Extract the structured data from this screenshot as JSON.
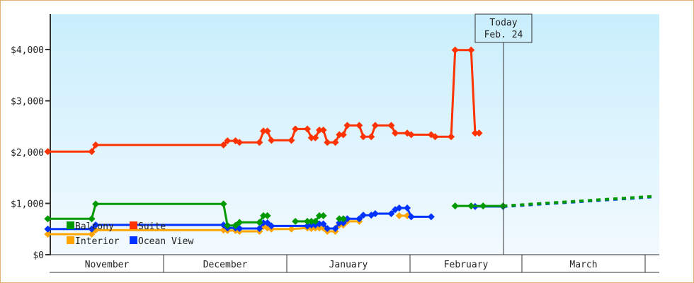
{
  "chart_data": {
    "type": "line",
    "title": "",
    "xlabel": "",
    "ylabel": "",
    "ylim": [
      0,
      4700
    ],
    "y_ticks": [
      "$0",
      "$1,000",
      "$2,000",
      "$3,000",
      "$4,000"
    ],
    "y_tick_values": [
      0,
      1000,
      2000,
      3000,
      4000
    ],
    "x_months": [
      "November",
      "December",
      "January",
      "February",
      "March",
      ""
    ],
    "grid": false,
    "legend_position": "bottom-left",
    "today": {
      "line1": "Today",
      "line2": "Feb. 24",
      "date": "02-24"
    },
    "series": [
      {
        "name": "Balcony",
        "color": "#009900",
        "points": [
          [
            "11-02",
            700
          ],
          [
            "11-13",
            700
          ],
          [
            "11-14",
            990
          ],
          [
            "12-16",
            990
          ],
          [
            "12-17",
            570
          ],
          [
            "12-19",
            570
          ],
          [
            "12-20",
            630
          ],
          [
            "12-25",
            630
          ],
          [
            "12-26",
            760
          ],
          [
            "12-27",
            760
          ],
          null,
          [
            "01-03",
            650
          ],
          [
            "01-06",
            650
          ],
          [
            "01-07",
            650
          ],
          [
            "01-08",
            650
          ],
          [
            "01-09",
            760
          ],
          [
            "01-10",
            760
          ],
          null,
          [
            "01-14",
            700
          ],
          [
            "01-15",
            700
          ],
          null,
          [
            "02-12",
            950
          ],
          [
            "02-16",
            950
          ],
          [
            "02-19",
            950
          ],
          [
            "02-24",
            950
          ]
        ],
        "forecast": [
          [
            "02-24",
            950
          ],
          [
            "04-03",
            1140
          ]
        ]
      },
      {
        "name": "Suite",
        "color": "#ff3300",
        "points": [
          [
            "11-02",
            2010
          ],
          [
            "11-13",
            2010
          ],
          [
            "11-14",
            2140
          ],
          [
            "12-16",
            2140
          ],
          [
            "12-17",
            2220
          ],
          [
            "12-19",
            2220
          ],
          [
            "12-20",
            2190
          ],
          [
            "12-25",
            2190
          ],
          [
            "12-26",
            2410
          ],
          [
            "12-27",
            2410
          ],
          [
            "12-28",
            2230
          ],
          [
            "01-02",
            2230
          ],
          [
            "01-03",
            2450
          ],
          [
            "01-06",
            2450
          ],
          [
            "01-07",
            2280
          ],
          [
            "01-08",
            2280
          ],
          [
            "01-09",
            2430
          ],
          [
            "01-10",
            2430
          ],
          [
            "01-11",
            2190
          ],
          [
            "01-13",
            2190
          ],
          [
            "01-14",
            2340
          ],
          [
            "01-15",
            2340
          ],
          [
            "01-16",
            2520
          ],
          [
            "01-19",
            2520
          ],
          [
            "01-20",
            2300
          ],
          [
            "01-22",
            2300
          ],
          [
            "01-23",
            2520
          ],
          [
            "01-27",
            2520
          ],
          [
            "01-28",
            2370
          ],
          [
            "01-31",
            2370
          ],
          [
            "02-01",
            2340
          ],
          [
            "02-06",
            2340
          ],
          [
            "02-07",
            2300
          ],
          [
            "02-11",
            2300
          ],
          [
            "02-12",
            3990
          ],
          [
            "02-16",
            3990
          ],
          [
            "02-17",
            2370
          ],
          [
            "02-18",
            2370
          ]
        ]
      },
      {
        "name": "Interior",
        "color": "#ffa500",
        "points": [
          [
            "11-02",
            400
          ],
          [
            "11-13",
            400
          ],
          [
            "11-14",
            480
          ],
          [
            "12-16",
            480
          ],
          [
            "12-17",
            470
          ],
          [
            "12-19",
            470
          ],
          [
            "12-20",
            455
          ],
          [
            "12-25",
            455
          ],
          [
            "12-26",
            550
          ],
          [
            "12-27",
            520
          ],
          [
            "12-28",
            500
          ],
          [
            "01-02",
            500
          ],
          [
            "01-06",
            520
          ],
          [
            "01-07",
            510
          ],
          [
            "01-08",
            520
          ],
          [
            "01-09",
            520
          ],
          [
            "01-10",
            520
          ],
          [
            "01-11",
            455
          ],
          [
            "01-13",
            455
          ],
          [
            "01-14",
            580
          ],
          [
            "01-15",
            580
          ],
          [
            "01-16",
            650
          ],
          [
            "01-19",
            650
          ],
          null,
          [
            "01-29",
            760
          ],
          [
            "01-31",
            760
          ]
        ]
      },
      {
        "name": "Ocean View",
        "color": "#0033ff",
        "points": [
          [
            "11-02",
            500
          ],
          [
            "11-13",
            500
          ],
          [
            "11-14",
            580
          ],
          [
            "12-16",
            580
          ],
          [
            "12-17",
            520
          ],
          [
            "12-19",
            520
          ],
          [
            "12-20",
            510
          ],
          [
            "12-25",
            510
          ],
          [
            "12-26",
            620
          ],
          [
            "12-27",
            620
          ],
          [
            "12-28",
            560
          ],
          [
            "01-06",
            560
          ],
          [
            "01-07",
            580
          ],
          [
            "01-08",
            580
          ],
          [
            "01-09",
            600
          ],
          [
            "01-10",
            600
          ],
          [
            "01-11",
            510
          ],
          [
            "01-13",
            510
          ],
          [
            "01-14",
            620
          ],
          [
            "01-15",
            620
          ],
          [
            "01-16",
            700
          ],
          [
            "01-19",
            700
          ],
          [
            "01-20",
            770
          ],
          [
            "01-22",
            770
          ],
          [
            "01-23",
            800
          ],
          [
            "01-27",
            800
          ],
          [
            "01-28",
            880
          ],
          [
            "01-29",
            910
          ],
          [
            "01-31",
            910
          ],
          [
            "02-01",
            740
          ],
          [
            "02-06",
            740
          ],
          null,
          [
            "02-17",
            940
          ],
          [
            "02-24",
            940
          ]
        ],
        "forecast": [
          [
            "02-24",
            940
          ],
          [
            "04-03",
            1130
          ]
        ]
      }
    ]
  }
}
